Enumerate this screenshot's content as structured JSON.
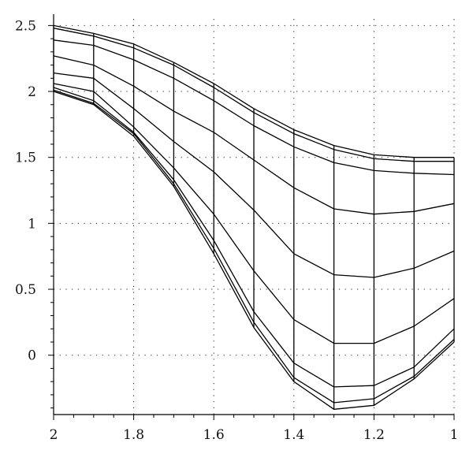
{
  "chart_data": {
    "type": "line",
    "title": "",
    "xlabel": "",
    "ylabel": "",
    "xlim": [
      2,
      1
    ],
    "ylim": [
      -0.45,
      2.55
    ],
    "x_reversed": true,
    "grid": true,
    "xticks": [
      2,
      1.8,
      1.6,
      1.4,
      1.2,
      1
    ],
    "xtick_labels": [
      "2",
      "1.8",
      "1.6",
      "1.4",
      "1.2",
      "1"
    ],
    "yticks": [
      2.5,
      2,
      1.5,
      1,
      0.5,
      0
    ],
    "ytick_labels": [
      "2.5",
      "2",
      "1.5",
      "1",
      "0.5",
      "0"
    ],
    "x": [
      2.0,
      1.9,
      1.8,
      1.7,
      1.6,
      1.5,
      1.4,
      1.3,
      1.2,
      1.1,
      1.0
    ],
    "series": [
      {
        "values": [
          2.5,
          2.44,
          2.36,
          2.22,
          2.06,
          1.87,
          1.71,
          1.59,
          1.52,
          1.5,
          1.5
        ]
      },
      {
        "values": [
          2.48,
          2.42,
          2.33,
          2.2,
          2.03,
          1.84,
          1.68,
          1.56,
          1.49,
          1.47,
          1.47
        ]
      },
      {
        "values": [
          2.39,
          2.35,
          2.24,
          2.1,
          1.93,
          1.74,
          1.58,
          1.46,
          1.4,
          1.38,
          1.37
        ]
      },
      {
        "values": [
          2.27,
          2.2,
          2.04,
          1.85,
          1.69,
          1.48,
          1.27,
          1.11,
          1.07,
          1.09,
          1.15
        ]
      },
      {
        "values": [
          2.14,
          2.1,
          1.87,
          1.62,
          1.39,
          1.1,
          0.77,
          0.61,
          0.59,
          0.66,
          0.79
        ]
      },
      {
        "values": [
          2.06,
          2.0,
          1.73,
          1.42,
          1.07,
          0.64,
          0.27,
          0.09,
          0.09,
          0.22,
          0.43
        ]
      },
      {
        "values": [
          2.03,
          1.93,
          1.69,
          1.33,
          0.87,
          0.33,
          -0.06,
          -0.24,
          -0.23,
          -0.09,
          0.2
        ]
      },
      {
        "values": [
          2.01,
          1.91,
          1.68,
          1.3,
          0.81,
          0.25,
          -0.17,
          -0.36,
          -0.33,
          -0.16,
          0.12
        ]
      },
      {
        "values": [
          2.0,
          1.9,
          1.66,
          1.28,
          0.77,
          0.21,
          -0.2,
          -0.41,
          -0.38,
          -0.18,
          0.1
        ]
      }
    ]
  }
}
